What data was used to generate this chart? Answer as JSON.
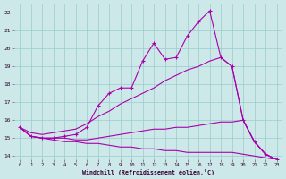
{
  "xlabel": "Windchill (Refroidissement éolien,°C)",
  "bg_color": "#cce8e8",
  "grid_color": "#99cccc",
  "line_color": "#aa00aa",
  "xlim": [
    -0.5,
    23.5
  ],
  "ylim": [
    13.8,
    22.5
  ],
  "xticks": [
    0,
    1,
    2,
    3,
    4,
    5,
    6,
    7,
    8,
    9,
    10,
    11,
    12,
    13,
    14,
    15,
    16,
    17,
    18,
    19,
    20,
    21,
    22,
    23
  ],
  "yticks": [
    14,
    15,
    16,
    17,
    18,
    19,
    20,
    21,
    22
  ],
  "line1_x": [
    0,
    1,
    2,
    3,
    4,
    5,
    6,
    7,
    8,
    9,
    10,
    11,
    12,
    13,
    14,
    15,
    16,
    17,
    18,
    19,
    20,
    21,
    22,
    23
  ],
  "line1_y": [
    15.6,
    15.1,
    15.0,
    15.0,
    15.1,
    15.2,
    15.6,
    16.8,
    17.5,
    17.8,
    17.8,
    19.3,
    20.3,
    19.4,
    19.5,
    20.7,
    21.5,
    22.1,
    19.5,
    19.0,
    16.0,
    14.8,
    14.1,
    13.8
  ],
  "line2_x": [
    0,
    1,
    2,
    3,
    4,
    5,
    6,
    7,
    8,
    9,
    10,
    11,
    12,
    13,
    14,
    15,
    16,
    17,
    18,
    19,
    20,
    21,
    22,
    23
  ],
  "line2_y": [
    15.6,
    15.3,
    15.2,
    15.3,
    15.4,
    15.5,
    15.8,
    16.2,
    16.5,
    16.9,
    17.2,
    17.5,
    17.8,
    18.2,
    18.5,
    18.8,
    19.0,
    19.3,
    19.5,
    19.0,
    16.0,
    14.8,
    14.1,
    13.8
  ],
  "line3_x": [
    0,
    1,
    2,
    3,
    4,
    5,
    6,
    7,
    8,
    9,
    10,
    11,
    12,
    13,
    14,
    15,
    16,
    17,
    18,
    19,
    20,
    21,
    22,
    23
  ],
  "line3_y": [
    15.6,
    15.1,
    15.0,
    15.0,
    15.0,
    14.9,
    14.9,
    15.0,
    15.1,
    15.2,
    15.3,
    15.4,
    15.5,
    15.5,
    15.6,
    15.6,
    15.7,
    15.8,
    15.9,
    15.9,
    16.0,
    14.8,
    14.1,
    13.8
  ],
  "line4_x": [
    0,
    1,
    2,
    3,
    4,
    5,
    6,
    7,
    8,
    9,
    10,
    11,
    12,
    13,
    14,
    15,
    16,
    17,
    18,
    19,
    20,
    21,
    22,
    23
  ],
  "line4_y": [
    15.6,
    15.1,
    15.0,
    14.9,
    14.8,
    14.8,
    14.7,
    14.7,
    14.6,
    14.5,
    14.5,
    14.4,
    14.4,
    14.3,
    14.3,
    14.2,
    14.2,
    14.2,
    14.2,
    14.2,
    14.1,
    14.0,
    13.9,
    13.8
  ]
}
